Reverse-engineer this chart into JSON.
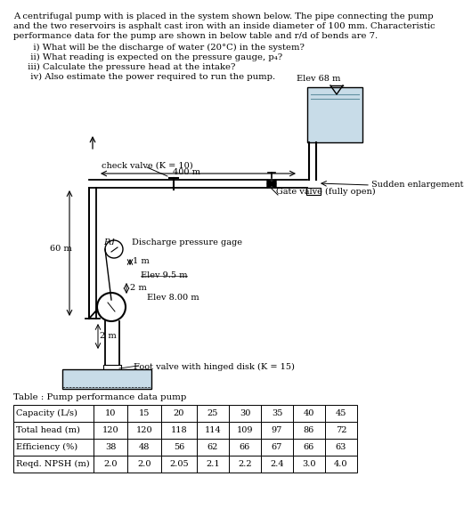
{
  "title_line1": "A centrifugal pump with is placed in the system shown below. The pipe connecting the pump",
  "title_line2": "and the two reservoirs is asphalt cast iron with an inside diameter of 100 mm. Characteristic",
  "title_line3": "performance data for the pump are shown in below table and r/d of bends are 7.",
  "q1": "   i) What will be the discharge of water (20°C) in the system?",
  "q2": "  ii) What reading is expected on the pressure gauge, p₄?",
  "q3": " iii) Calculate the pressure head at the intake?",
  "q4": "  iv) Also estimate the power required to run the pump.",
  "table_title": "Table : Pump performance data pump",
  "table_headers": [
    "Capacity (L/s)",
    "10",
    "15",
    "20",
    "25",
    "30",
    "35",
    "40",
    "45"
  ],
  "table_row1": [
    "Total head (m)",
    "120",
    "120",
    "118",
    "114",
    "109",
    "97",
    "86",
    "72"
  ],
  "table_row2": [
    "Efficiency (%)",
    "38",
    "48",
    "56",
    "62",
    "66",
    "67",
    "66",
    "63"
  ],
  "table_row3": [
    "Reqd. NPSH (m)",
    "2.0",
    "2.0",
    "2.05",
    "2.1",
    "2.2",
    "2.4",
    "3.0",
    "4.0"
  ],
  "bg_color": "#ffffff",
  "lbl_elev68": "Elev 68 m",
  "lbl_400m": "400 m",
  "lbl_check": "check valve (K = 10)",
  "lbl_gate": "Gate valve (fully open)",
  "lbl_sudden": "Sudden enlargement",
  "lbl_60m": "60 m",
  "lbl_pd": "Pd",
  "lbl_discharge": "Discharge pressure gage",
  "lbl_1m": "1 m",
  "lbl_elev95": "Elev 9.5 m",
  "lbl_2ma": "2 m",
  "lbl_elev800": "Elev 8.00 m",
  "lbl_2mb": "2 m",
  "lbl_foot": "Foot valve with hinged disk (K = 15)",
  "reservoir_fill": "#c8dce8",
  "sump_fill": "#c8dce8"
}
